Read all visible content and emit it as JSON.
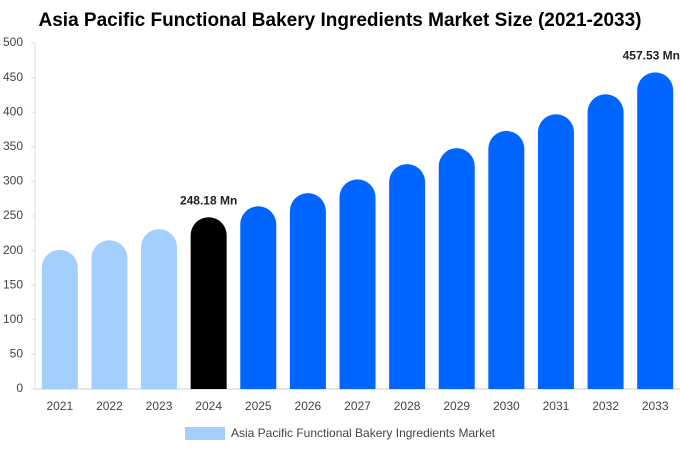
{
  "chart_data": {
    "type": "bar",
    "title": "Asia Pacific Functional Bakery Ingredients Market Size (2021-2033)",
    "categories": [
      "2021",
      "2022",
      "2023",
      "2024",
      "2025",
      "2026",
      "2027",
      "2028",
      "2029",
      "2030",
      "2031",
      "2032",
      "2033"
    ],
    "series": [
      {
        "name": "Asia Pacific Functional Bakery Ingredients Market",
        "color": "#a3cfff",
        "values": [
          201,
          215,
          231,
          248.18,
          264,
          283,
          303,
          325,
          348,
          373,
          397,
          426,
          457.53
        ],
        "value_labels": [
          null,
          null,
          null,
          "248.18 Mn",
          null,
          null,
          null,
          null,
          null,
          null,
          null,
          null,
          "457.53 Mn"
        ],
        "colors": [
          "#a3cfff",
          "#a3cfff",
          "#a3cfff",
          "#000000",
          "#0066ff",
          "#0066ff",
          "#0066ff",
          "#0066ff",
          "#0066ff",
          "#0066ff",
          "#0066ff",
          "#0066ff",
          "#0066ff"
        ]
      }
    ],
    "ylim": [
      0,
      500
    ],
    "yticks": [
      0,
      50,
      100,
      150,
      200,
      250,
      300,
      350,
      400,
      450,
      500
    ],
    "grid": false
  }
}
